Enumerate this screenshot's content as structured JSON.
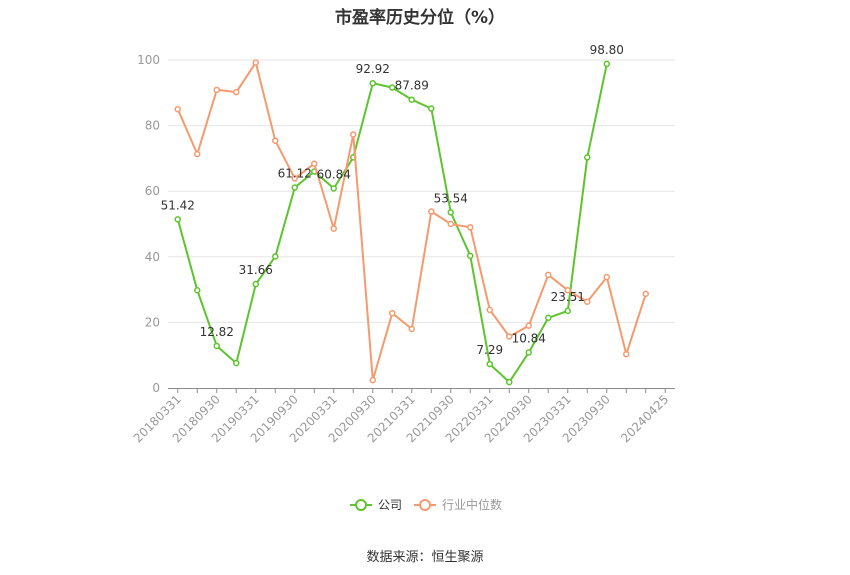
{
  "chart_data": {
    "type": "line",
    "title": "市盈率历史分位（%）",
    "xlabel": "",
    "ylabel": "",
    "ylim": [
      0,
      100
    ],
    "yticks": [
      0,
      20,
      40,
      60,
      80,
      100
    ],
    "grid": true,
    "legend_position": "bottom-center",
    "x": [
      "20180331",
      "20180630",
      "20180930",
      "20181231",
      "20190331",
      "20190630",
      "20190930",
      "20191231",
      "20200331",
      "20200630",
      "20200930",
      "20201231",
      "20210331",
      "20210630",
      "20210930",
      "20211231",
      "20220331",
      "20220630",
      "20220930",
      "20221231",
      "20230331",
      "20230630",
      "20230930",
      "20231231",
      "20240331",
      "20240425"
    ],
    "x_tick_labels": [
      "20180331",
      "20180930",
      "20190331",
      "20190930",
      "20200331",
      "20200930",
      "20210331",
      "20210930",
      "20220331",
      "20220930",
      "20230331",
      "20230930",
      "20240425"
    ],
    "series": [
      {
        "name": "公司",
        "color": "#5dc42e",
        "values": [
          51.42,
          29.8,
          12.82,
          7.6,
          31.66,
          40.1,
          61.12,
          66.0,
          60.84,
          70.3,
          92.92,
          91.6,
          87.89,
          85.2,
          53.54,
          40.3,
          7.29,
          1.8,
          10.84,
          21.4,
          23.51,
          70.3,
          98.8,
          null,
          null,
          null
        ],
        "labels": {
          "0": "51.42",
          "2": "12.82",
          "4": "31.66",
          "6": "61.12",
          "8": "60.84",
          "10": "92.92",
          "12": "87.89",
          "14": "53.54",
          "16": "7.29",
          "18": "10.84",
          "20": "23.51",
          "22": "98.80"
        }
      },
      {
        "name": "行业中位数",
        "color": "#f59a6e",
        "values": [
          85.0,
          71.3,
          90.9,
          90.2,
          99.2,
          75.4,
          63.9,
          68.4,
          48.6,
          77.3,
          2.4,
          22.8,
          18.0,
          53.8,
          50.0,
          49.0,
          23.8,
          15.7,
          19.0,
          34.5,
          29.8,
          26.3,
          33.8,
          10.3,
          28.7,
          null
        ]
      }
    ]
  },
  "legend": {
    "company_label": "公司",
    "industry_label": "行业中位数"
  },
  "source": "数据来源：恒生聚源"
}
